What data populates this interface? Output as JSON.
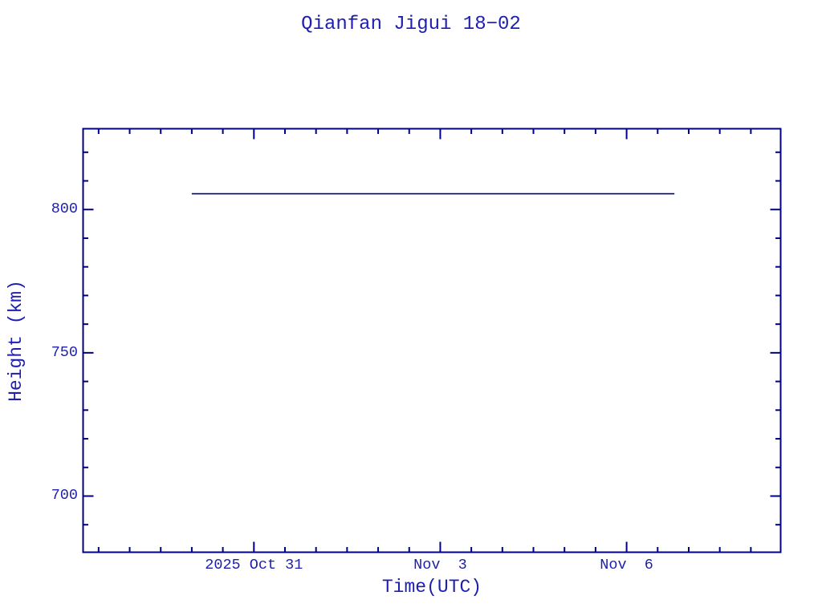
{
  "chart_data": {
    "type": "line",
    "title": "Qianfan Jigui 18−02",
    "xlabel": "Time(UTC)",
    "ylabel": "Height (km)",
    "grid": false,
    "legend": false,
    "frame": "box-with-inward-ticks-on-all-four-sides",
    "x_axis": {
      "unit": "days relative to 2025 Oct 31 00:00 UTC",
      "lim": [
        -2.75,
        8.48
      ],
      "minor_tick_step": 0.5,
      "major_ticks": [
        {
          "value": 0,
          "label": "2025 Oct 31"
        },
        {
          "value": 3,
          "label": "Nov  3"
        },
        {
          "value": 6,
          "label": "Nov  6"
        }
      ]
    },
    "y_axis": {
      "unit": "km",
      "lim": [
        680.4,
        828.2
      ],
      "minor_tick_step": 10,
      "major_ticks": [
        {
          "value": 700,
          "label": "700"
        },
        {
          "value": 750,
          "label": "750"
        },
        {
          "value": 800,
          "label": "800"
        }
      ]
    },
    "series": [
      {
        "name": "height",
        "color": "#000080",
        "stroke_width": 1.6,
        "height_km": 805.5,
        "points": [
          {
            "x": -1.0,
            "date_estimate": "2025 Oct 30",
            "y": 805.5
          },
          {
            "x": 6.77,
            "date_estimate": "2025 Nov 6 ~18h",
            "y": 805.5
          }
        ]
      }
    ]
  },
  "colors": {
    "background": "#ffffff",
    "axis": "#000080",
    "text": "#1f1fad"
  }
}
